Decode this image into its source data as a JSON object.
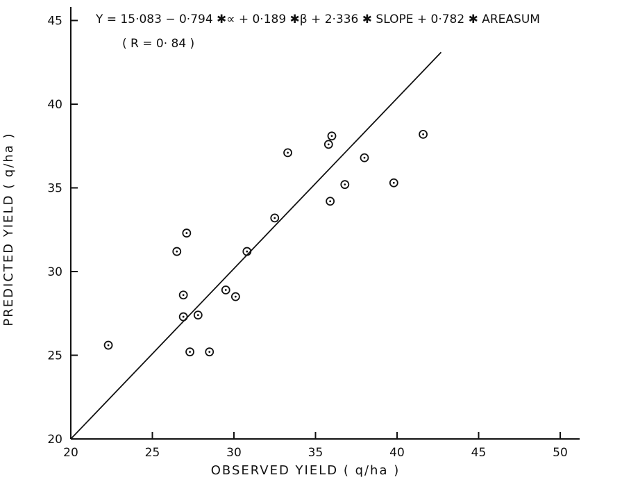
{
  "chart_data": {
    "type": "scatter",
    "title": "",
    "annotations": {
      "equation": "Y = 15·083 − 0·794 ✱∝ + 0·189 ✱β + 2·336 ✱ SLOPE + 0·782 ✱ AREASUM",
      "r_value": "( R = 0· 84 )"
    },
    "xlabel": "OBSERVED YIELD ( q/ha )",
    "ylabel": "PREDICTED YIELD ( q/ha )",
    "xlim": [
      20,
      52
    ],
    "ylim": [
      20,
      46
    ],
    "x_ticks": [
      20,
      25,
      30,
      35,
      40,
      45,
      50
    ],
    "y_ticks": [
      20,
      25,
      30,
      35,
      40,
      45
    ],
    "x_tick_labels": [
      "20",
      "25",
      "30",
      "35",
      "40",
      "45",
      "50"
    ],
    "y_tick_labels": [
      "20",
      "25",
      "30",
      "35",
      "40",
      "45"
    ],
    "grid": false,
    "fit_line": {
      "x": [
        20,
        42.7
      ],
      "y": [
        20,
        43.1
      ]
    },
    "points": [
      {
        "x": 22.3,
        "y": 25.6
      },
      {
        "x": 26.5,
        "y": 31.2
      },
      {
        "x": 27.1,
        "y": 32.3
      },
      {
        "x": 26.9,
        "y": 28.6
      },
      {
        "x": 26.9,
        "y": 27.3
      },
      {
        "x": 27.8,
        "y": 27.4
      },
      {
        "x": 27.3,
        "y": 25.2
      },
      {
        "x": 28.5,
        "y": 25.2
      },
      {
        "x": 29.5,
        "y": 28.9
      },
      {
        "x": 30.1,
        "y": 28.5
      },
      {
        "x": 30.8,
        "y": 31.2
      },
      {
        "x": 32.5,
        "y": 33.2
      },
      {
        "x": 33.3,
        "y": 37.1
      },
      {
        "x": 35.8,
        "y": 37.6
      },
      {
        "x": 36.0,
        "y": 38.1
      },
      {
        "x": 35.9,
        "y": 34.2
      },
      {
        "x": 36.8,
        "y": 35.2
      },
      {
        "x": 38.0,
        "y": 36.8
      },
      {
        "x": 39.8,
        "y": 35.3
      },
      {
        "x": 41.6,
        "y": 38.2
      }
    ]
  }
}
